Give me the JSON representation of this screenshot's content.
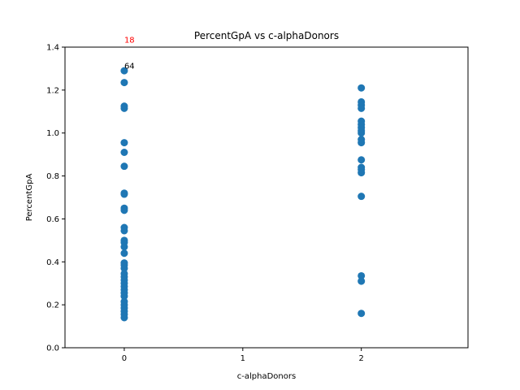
{
  "chart_data": {
    "type": "scatter",
    "title": "PercentGpA vs c-alphaDonors",
    "xlabel": "c-alphaDonors",
    "ylabel": "PercentGpA",
    "xlim": [
      -0.5,
      2.9
    ],
    "ylim": [
      0.0,
      1.4
    ],
    "xticks": [
      0,
      1,
      2
    ],
    "yticks": [
      "0.0",
      "0.2",
      "0.4",
      "0.6",
      "0.8",
      "1.0",
      "1.2",
      "1.4"
    ],
    "grid": false,
    "marker_color": "#1f77b4",
    "points": [
      {
        "x": 0,
        "y": 1.29
      },
      {
        "x": 0,
        "y": 1.235
      },
      {
        "x": 0,
        "y": 1.125
      },
      {
        "x": 0,
        "y": 1.115
      },
      {
        "x": 0,
        "y": 0.955
      },
      {
        "x": 0,
        "y": 0.91
      },
      {
        "x": 0,
        "y": 0.845
      },
      {
        "x": 0,
        "y": 0.72
      },
      {
        "x": 0,
        "y": 0.715
      },
      {
        "x": 0,
        "y": 0.65
      },
      {
        "x": 0,
        "y": 0.64
      },
      {
        "x": 0,
        "y": 0.56
      },
      {
        "x": 0,
        "y": 0.545
      },
      {
        "x": 0,
        "y": 0.5
      },
      {
        "x": 0,
        "y": 0.49
      },
      {
        "x": 0,
        "y": 0.47
      },
      {
        "x": 0,
        "y": 0.44
      },
      {
        "x": 0,
        "y": 0.395
      },
      {
        "x": 0,
        "y": 0.385
      },
      {
        "x": 0,
        "y": 0.37
      },
      {
        "x": 0,
        "y": 0.345
      },
      {
        "x": 0,
        "y": 0.33
      },
      {
        "x": 0,
        "y": 0.315
      },
      {
        "x": 0,
        "y": 0.3
      },
      {
        "x": 0,
        "y": 0.285
      },
      {
        "x": 0,
        "y": 0.27
      },
      {
        "x": 0,
        "y": 0.255
      },
      {
        "x": 0,
        "y": 0.24
      },
      {
        "x": 0,
        "y": 0.215
      },
      {
        "x": 0,
        "y": 0.2
      },
      {
        "x": 0,
        "y": 0.185
      },
      {
        "x": 0,
        "y": 0.17
      },
      {
        "x": 0,
        "y": 0.155
      },
      {
        "x": 0,
        "y": 0.14
      },
      {
        "x": 2,
        "y": 1.21
      },
      {
        "x": 2,
        "y": 1.145
      },
      {
        "x": 2,
        "y": 1.13
      },
      {
        "x": 2,
        "y": 1.115
      },
      {
        "x": 2,
        "y": 1.055
      },
      {
        "x": 2,
        "y": 1.04
      },
      {
        "x": 2,
        "y": 1.025
      },
      {
        "x": 2,
        "y": 1.01
      },
      {
        "x": 2,
        "y": 1.0
      },
      {
        "x": 2,
        "y": 0.97
      },
      {
        "x": 2,
        "y": 0.955
      },
      {
        "x": 2,
        "y": 0.875
      },
      {
        "x": 2,
        "y": 0.84
      },
      {
        "x": 2,
        "y": 0.83
      },
      {
        "x": 2,
        "y": 0.815
      },
      {
        "x": 2,
        "y": 0.705
      },
      {
        "x": 2,
        "y": 0.335
      },
      {
        "x": 2,
        "y": 0.31
      },
      {
        "x": 2,
        "y": 0.16
      }
    ],
    "annotations": [
      {
        "text": "18",
        "x": 0,
        "y": 1.42,
        "color": "#ff0000"
      },
      {
        "text": "64",
        "x": 0,
        "y": 1.3,
        "color": "#000000"
      }
    ]
  }
}
